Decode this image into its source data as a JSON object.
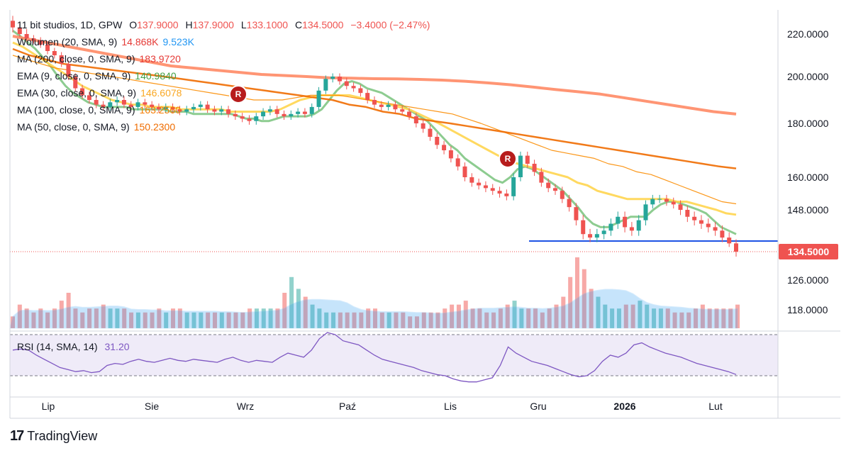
{
  "header": {
    "symbol": "11 bit studios, 1D, GPW",
    "open_label": "O",
    "open": "137.9000",
    "high_label": "H",
    "high": "137.9000",
    "low_label": "L",
    "low": "133.1000",
    "close_label": "C",
    "close": "134.5000",
    "change": "−3.4000 (−2.47%)"
  },
  "indicators": [
    {
      "label": "Wolumen (20, SMA, 9)",
      "value": "14.868K",
      "value2": "9.523K",
      "color": "#e53935",
      "color2": "#2196f3"
    },
    {
      "label": "MA (200, close, 0, SMA, 9)",
      "value": "183.9720",
      "color": "#e53935"
    },
    {
      "label": "EMA (9, close, 0, SMA, 9)",
      "value": "140.9840",
      "color": "#43a047"
    },
    {
      "label": "EMA (30, close, 0, SMA, 9)",
      "value": "146.6078",
      "color": "#f9a825"
    },
    {
      "label": "MA (100, close, 0, SMA, 9)",
      "value": "163.2560",
      "color": "#f57c00"
    },
    {
      "label": "MA (50, close, 0, SMA, 9)",
      "value": "150.2300",
      "color": "#ef6c00"
    }
  ],
  "markers": [
    "R",
    "R"
  ],
  "last_price_tag": "134.5000",
  "brand": "TradingView",
  "colors": {
    "up": "#26a69a",
    "down": "#ef5350",
    "rsi": "#7e57c2",
    "support": "#1e53e5"
  },
  "chart_data": {
    "type": "line",
    "title": "11 bit studios, 1D, GPW",
    "x_tick_labels": [
      "Lip",
      "Sie",
      "Wrz",
      "Paź",
      "Lis",
      "Gru",
      "2026",
      "Lut"
    ],
    "y_tick_labels": [
      "220.0000",
      "200.0000",
      "180.0000",
      "160.0000",
      "148.0000",
      "126.0000",
      "118.0000"
    ],
    "y_ticks": [
      220,
      200,
      180,
      160,
      148,
      126,
      118
    ],
    "close": [
      222,
      220,
      218,
      217,
      215,
      212,
      210,
      206,
      200,
      195,
      192,
      190,
      188,
      187,
      189,
      190,
      188,
      187,
      189,
      188,
      187,
      186,
      187,
      186,
      185,
      186,
      187,
      188,
      186,
      185,
      186,
      184,
      183,
      182,
      181,
      183,
      185,
      186,
      184,
      183,
      184,
      185,
      184,
      187,
      194,
      199,
      200,
      198,
      196,
      195,
      193,
      190,
      188,
      187,
      188,
      186,
      185,
      183,
      180,
      178,
      175,
      172,
      170,
      167,
      164,
      160,
      158,
      157,
      156,
      155,
      154,
      153,
      160,
      168,
      165,
      162,
      158,
      156,
      155,
      152,
      149,
      145,
      141,
      140,
      141,
      142,
      144,
      146,
      143,
      142,
      145,
      150,
      152,
      152,
      151,
      150,
      148,
      146,
      145,
      144,
      143,
      142,
      140,
      138,
      134.5
    ],
    "series": [
      {
        "name": "EMA 9",
        "values": [
          221,
          219,
          216,
          213,
          209,
          205,
          200,
          196,
          193,
          191,
          189,
          188,
          187,
          187,
          187,
          187,
          186,
          186,
          186,
          186,
          186,
          185,
          185,
          185,
          184,
          184,
          184,
          184,
          184,
          184,
          183,
          182,
          182,
          181,
          181,
          182,
          183,
          183,
          183,
          183,
          184,
          186,
          190,
          194,
          197,
          198,
          197,
          195,
          194,
          193,
          191,
          189,
          187,
          185,
          183,
          181,
          178,
          175,
          172,
          170,
          167,
          165,
          163,
          161,
          159,
          158,
          160,
          163,
          164,
          163,
          161,
          159,
          157,
          155,
          152,
          149,
          146,
          144,
          143,
          143,
          144,
          145,
          146,
          146,
          146,
          148,
          150,
          151,
          151,
          150,
          149,
          148,
          147,
          145,
          143,
          142,
          140.98
        ]
      },
      {
        "name": "EMA 30",
        "values": [
          216,
          214,
          211,
          208,
          205,
          202,
          199,
          196,
          194,
          192,
          190,
          189,
          188,
          188,
          187,
          187,
          187,
          186,
          186,
          186,
          186,
          186,
          185,
          185,
          185,
          185,
          185,
          186,
          188,
          190,
          191,
          192,
          192,
          192,
          192,
          191,
          190,
          189,
          188,
          187,
          186,
          184,
          182,
          180,
          178,
          176,
          174,
          172,
          170,
          168,
          166,
          165,
          164,
          163,
          162,
          161,
          160,
          158,
          157,
          155,
          154,
          153,
          152,
          152,
          152,
          152,
          152,
          151,
          151,
          150,
          149,
          148,
          147,
          146.6
        ]
      },
      {
        "name": "MA 50",
        "values": [
          210,
          208,
          206,
          204,
          203,
          202,
          201,
          200,
          199,
          198,
          197,
          196,
          195,
          194,
          193,
          192,
          191,
          190,
          190,
          190,
          191,
          192,
          192,
          192,
          191,
          190,
          189,
          188,
          187,
          186,
          185,
          184,
          182,
          180,
          178,
          176,
          174,
          172,
          170,
          169,
          168,
          167,
          165,
          164,
          162,
          161,
          159,
          157,
          155,
          153,
          151,
          150.23
        ]
      },
      {
        "name": "MA 100",
        "values": [
          213,
          210,
          208,
          206,
          205,
          204,
          203,
          202,
          201,
          200,
          199,
          198,
          197,
          196,
          195,
          194,
          193,
          192,
          191,
          190,
          188,
          187,
          185,
          184,
          182,
          181,
          180,
          179,
          178,
          177,
          176,
          175,
          174,
          173,
          172,
          171,
          170,
          169,
          168,
          167,
          166,
          165,
          164,
          163.26
        ]
      },
      {
        "name": "MA 200",
        "values": [
          219,
          217,
          215,
          213,
          211,
          209,
          207,
          205,
          204,
          203,
          202,
          201,
          200.5,
          200,
          199.5,
          199.3,
          199.1,
          199,
          198.8,
          198.5,
          198,
          197.3,
          196.5,
          195.5,
          194.5,
          193.5,
          192.5,
          191,
          189.5,
          188,
          186.5,
          185,
          183.97
        ]
      }
    ],
    "support_level": 139,
    "ylim": [
      112,
      226
    ],
    "volume_values": [
      3,
      6,
      5,
      4,
      5,
      4,
      5,
      7,
      9,
      5,
      4,
      5,
      5,
      6,
      5,
      5,
      5,
      4,
      4,
      4,
      4,
      5,
      4,
      5,
      5,
      4,
      4,
      4,
      4,
      4,
      4,
      4,
      4,
      4,
      5,
      5,
      5,
      5,
      5,
      9,
      13,
      10,
      8,
      6,
      5,
      4,
      4,
      4,
      4,
      4,
      4,
      5,
      5,
      4,
      4,
      4,
      4,
      3,
      3,
      4,
      4,
      4,
      5,
      6,
      6,
      7,
      5,
      5,
      4,
      4,
      5,
      6,
      7,
      5,
      5,
      5,
      4,
      5,
      6,
      8,
      13,
      18,
      15,
      10,
      8,
      6,
      5,
      5,
      6,
      6,
      7,
      6,
      5,
      5,
      5,
      4,
      4,
      4,
      5,
      6,
      5,
      5,
      5,
      5,
      6
    ],
    "volume_sma_label": "9.523K",
    "rsi": {
      "label": "RSI (14, SMA, 14)",
      "value": "31.20",
      "upper": 70,
      "lower": 30,
      "values": [
        55,
        56,
        55,
        50,
        46,
        42,
        38,
        36,
        34,
        35,
        33,
        34,
        40,
        42,
        41,
        44,
        46,
        44,
        43,
        45,
        47,
        45,
        44,
        46,
        45,
        44,
        43,
        46,
        48,
        45,
        43,
        45,
        44,
        43,
        48,
        52,
        50,
        48,
        55,
        66,
        72,
        70,
        64,
        62,
        60,
        55,
        50,
        46,
        44,
        42,
        40,
        38,
        35,
        33,
        31,
        30,
        27,
        25,
        24,
        24,
        26,
        28,
        40,
        58,
        52,
        48,
        44,
        42,
        40,
        37,
        34,
        31,
        29,
        30,
        35,
        44,
        50,
        48,
        52,
        60,
        62,
        58,
        55,
        52,
        50,
        48,
        45,
        42,
        40,
        38,
        36,
        34,
        31.2
      ]
    }
  }
}
